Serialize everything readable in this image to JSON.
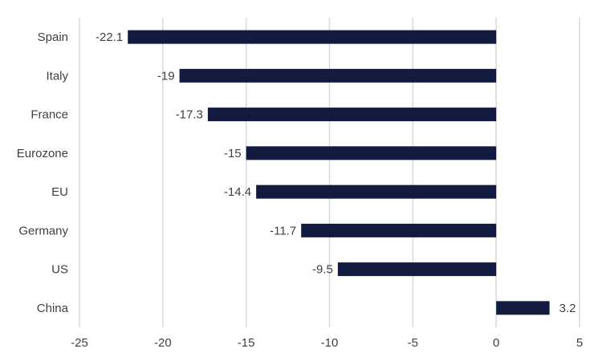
{
  "chart_data": {
    "type": "bar",
    "orientation": "horizontal",
    "categories": [
      "Spain",
      "Italy",
      "France",
      "Eurozone",
      "EU",
      "Germany",
      "US",
      "China"
    ],
    "values": [
      -22.1,
      -19,
      -17.3,
      -15,
      -14.4,
      -11.7,
      -9.5,
      3.2
    ],
    "data_labels": [
      "-22.1",
      "-19",
      "-17.3",
      "-15",
      "-14.4",
      "-11.7",
      "-9.5",
      "3.2"
    ],
    "x_ticks": [
      -25,
      -20,
      -15,
      -10,
      -5,
      0,
      5
    ],
    "x_tick_labels": [
      "-25",
      "-20",
      "-15",
      "-10",
      "-5",
      "0",
      "5"
    ],
    "xlim": [
      -25,
      5
    ],
    "title": "",
    "xlabel": "",
    "ylabel": "",
    "grid": "vertical",
    "legend": "none",
    "colors": {
      "bar": "#121b3f",
      "grid": "#d9d9d9",
      "text": "#404040"
    }
  }
}
